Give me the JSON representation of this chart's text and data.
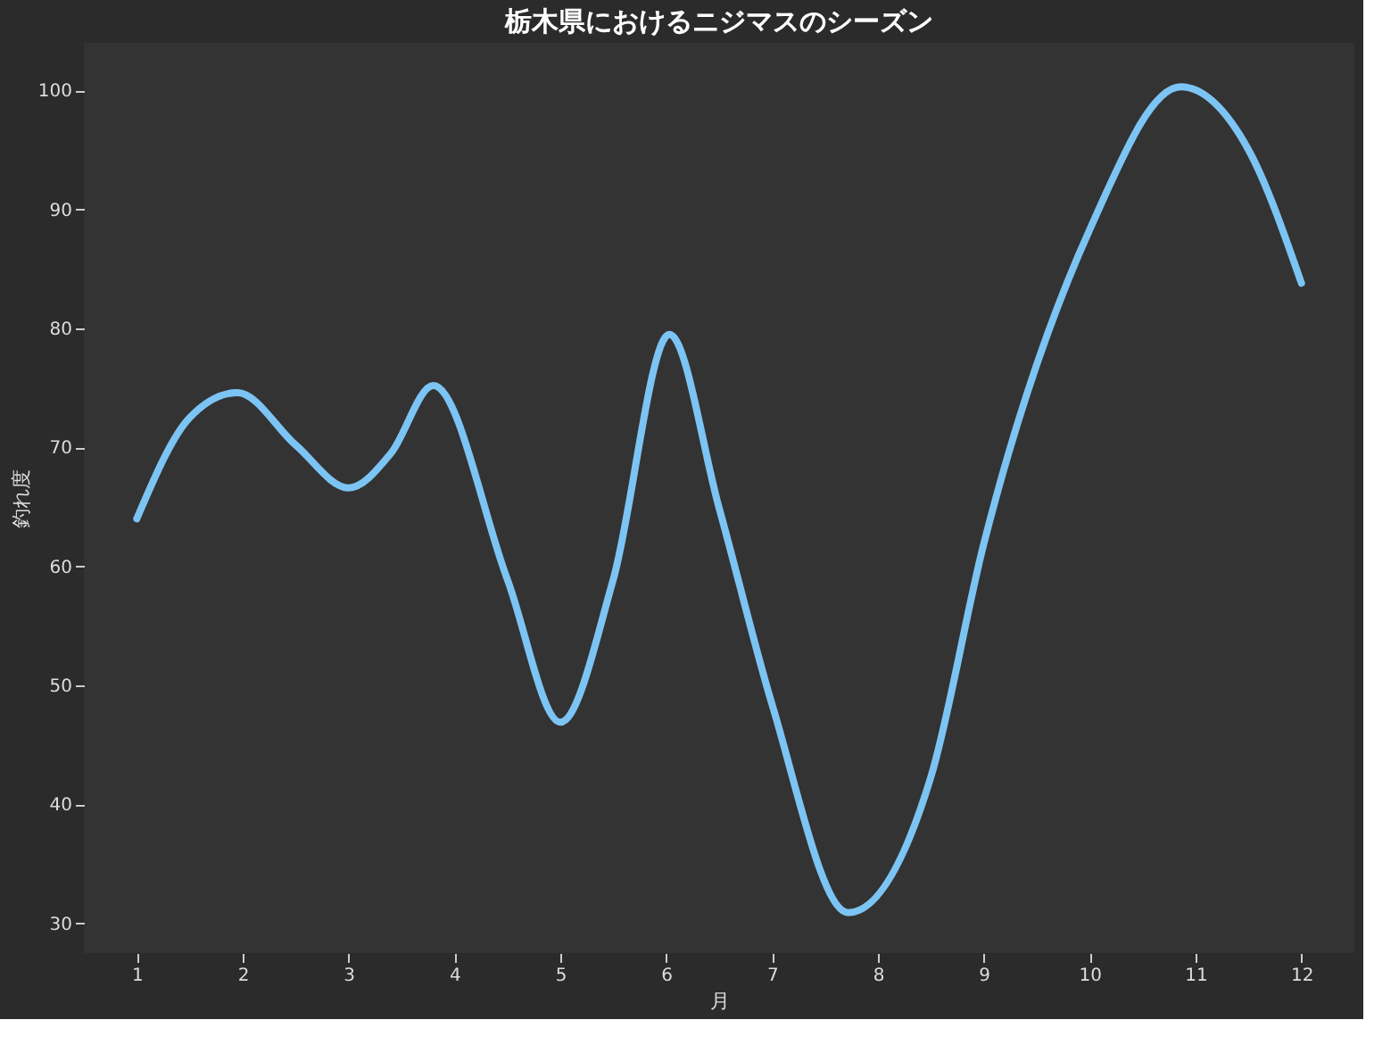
{
  "chart_data": {
    "type": "line",
    "title": "栃木県におけるニジマスのシーズン",
    "xlabel": "月",
    "ylabel": "釣れ度",
    "x": [
      1,
      1.5,
      1.95,
      2.5,
      3.0,
      3.4,
      3.8,
      4.5,
      5.0,
      5.5,
      6.03,
      6.5,
      7,
      7.72,
      8.5,
      9,
      10,
      10.86,
      11.5,
      12
    ],
    "series": [
      {
        "color": "#7cc4f4",
        "values": [
          64,
          72.5,
          74.6,
          70.2,
          66.6,
          69.5,
          75.2,
          58.9,
          46.9,
          58.9,
          79.5,
          64.9,
          48.4,
          30.9,
          42.3,
          61.9,
          88.3,
          100.3,
          95,
          83.8
        ]
      }
    ],
    "xlim": [
      0.5,
      12.5
    ],
    "ylim": [
      27.5,
      104
    ],
    "xticks": [
      1,
      2,
      3,
      4,
      5,
      6,
      7,
      8,
      9,
      10,
      11,
      12
    ],
    "yticks": [
      30,
      40,
      50,
      60,
      70,
      80,
      90,
      100
    ],
    "grid": false,
    "marker": "none",
    "line_style": "solid"
  }
}
